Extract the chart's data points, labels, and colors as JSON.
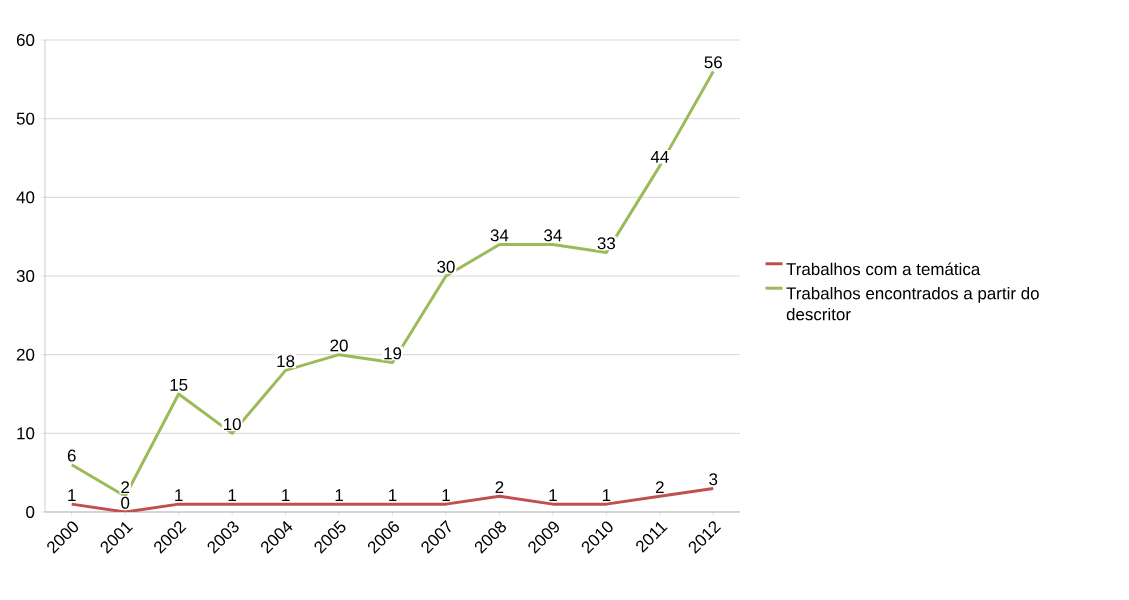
{
  "chart_data": {
    "type": "line",
    "categories": [
      "2000",
      "2001",
      "2002",
      "2003",
      "2004",
      "2005",
      "2006",
      "2007",
      "2008",
      "2009",
      "2010",
      "2011",
      "2012"
    ],
    "series": [
      {
        "name": "Trabalhos com a temática",
        "color": "#c0504d",
        "values": [
          1,
          0,
          1,
          1,
          1,
          1,
          1,
          1,
          2,
          1,
          1,
          2,
          3
        ]
      },
      {
        "name": "Trabalhos encontrados a partir do descritor",
        "color": "#9bbb59",
        "values": [
          6,
          2,
          15,
          10,
          18,
          20,
          19,
          30,
          34,
          34,
          33,
          44,
          56
        ]
      }
    ],
    "ylim": [
      0,
      60
    ],
    "yticks": [
      0,
      10,
      20,
      30,
      40,
      50,
      60
    ],
    "grid": "y",
    "legend": "right",
    "marker": "none",
    "line_style": "solid",
    "data_labels": true
  }
}
